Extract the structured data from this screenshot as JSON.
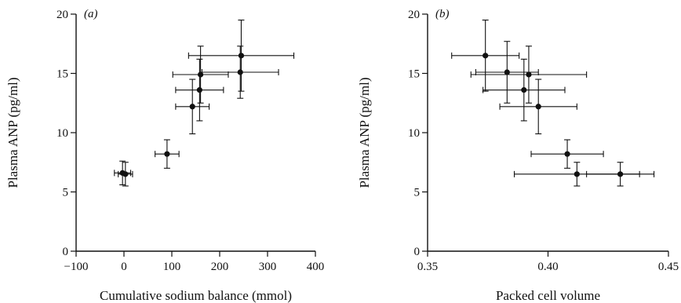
{
  "chart_data": [
    {
      "type": "scatter",
      "panel_label": "(a)",
      "xlabel": "Cumulative sodium balance (mmol)",
      "ylabel": "Plasma ANP (pg/ml)",
      "xlim": [
        -100,
        400
      ],
      "ylim": [
        0,
        20
      ],
      "xticks": [
        -100,
        0,
        100,
        200,
        300,
        400
      ],
      "xtick_labels": [
        "−100",
        "0",
        "100",
        "200",
        "300",
        "400"
      ],
      "yticks": [
        0,
        5,
        10,
        15,
        20
      ],
      "ytick_labels": [
        "0",
        "5",
        "10",
        "15",
        "20"
      ],
      "points": [
        {
          "x": -3,
          "y": 6.6,
          "xerr": 17,
          "yerr": 1.0
        },
        {
          "x": 3,
          "y": 6.5,
          "xerr": 15,
          "yerr": 1.0
        },
        {
          "x": 90,
          "y": 8.2,
          "xerr": 25,
          "yerr": 1.2
        },
        {
          "x": 143,
          "y": 12.2,
          "xerr": 35,
          "yerr": 2.3
        },
        {
          "x": 158,
          "y": 13.6,
          "xerr": 50,
          "yerr": 2.6
        },
        {
          "x": 160,
          "y": 14.9,
          "xerr": 58,
          "yerr": 2.4
        },
        {
          "x": 243,
          "y": 15.1,
          "xerr": 80,
          "yerr": 2.2
        },
        {
          "x": 245,
          "y": 16.5,
          "xerr": 110,
          "yerr": 3.0
        }
      ]
    },
    {
      "type": "scatter",
      "panel_label": "(b)",
      "xlabel": "Packed cell volume",
      "ylabel": "Plasma ANP (pg/ml)",
      "xlim": [
        0.35,
        0.45
      ],
      "ylim": [
        0,
        20
      ],
      "xticks": [
        0.35,
        0.4,
        0.45
      ],
      "xtick_labels": [
        "0.35",
        "0.40",
        "0.45"
      ],
      "yticks": [
        0,
        5,
        10,
        15,
        20
      ],
      "ytick_labels": [
        "0",
        "5",
        "10",
        "15",
        "20"
      ],
      "points": [
        {
          "x": 0.374,
          "y": 16.5,
          "xerr": 0.014,
          "yerr": 3.0
        },
        {
          "x": 0.383,
          "y": 15.1,
          "xerr": 0.013,
          "yerr": 2.6
        },
        {
          "x": 0.392,
          "y": 14.9,
          "xerr": 0.024,
          "yerr": 2.4
        },
        {
          "x": 0.39,
          "y": 13.6,
          "xerr": 0.017,
          "yerr": 2.6
        },
        {
          "x": 0.396,
          "y": 12.2,
          "xerr": 0.016,
          "yerr": 2.3
        },
        {
          "x": 0.408,
          "y": 8.2,
          "xerr": 0.015,
          "yerr": 1.2
        },
        {
          "x": 0.412,
          "y": 6.5,
          "xerr": 0.026,
          "yerr": 1.0
        },
        {
          "x": 0.43,
          "y": 6.5,
          "xerr": 0.014,
          "yerr": 1.0
        }
      ]
    }
  ]
}
